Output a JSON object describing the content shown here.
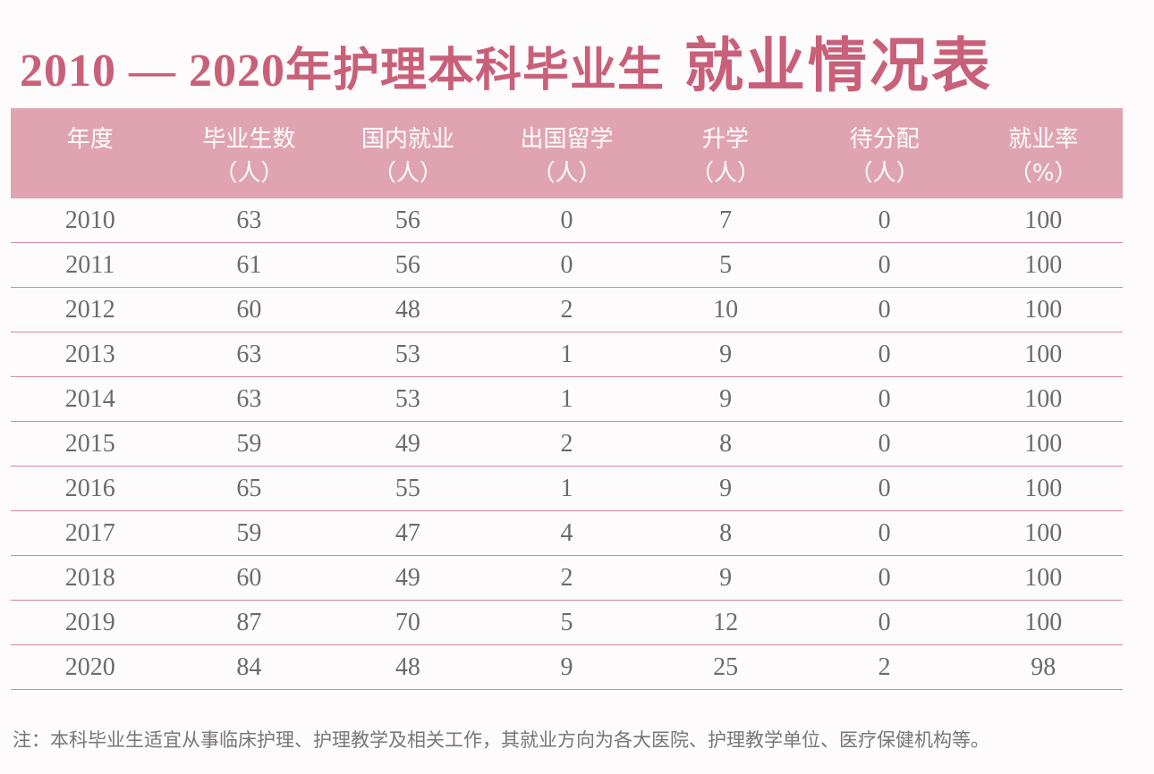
{
  "title": {
    "main": "2010 — 2020年护理本科毕业生",
    "emphasis": "就业情况表"
  },
  "table": {
    "headers": [
      {
        "label": "年度",
        "unit": ""
      },
      {
        "label": "毕业生数",
        "unit": "（人）"
      },
      {
        "label": "国内就业",
        "unit": "（人）"
      },
      {
        "label": "出国留学",
        "unit": "（人）"
      },
      {
        "label": "升学",
        "unit": "（人）"
      },
      {
        "label": "待分配",
        "unit": "（人）"
      },
      {
        "label": "就业率",
        "unit": "（%）"
      }
    ],
    "rows": [
      [
        "2010",
        "63",
        "56",
        "0",
        "7",
        "0",
        "100"
      ],
      [
        "2011",
        "61",
        "56",
        "0",
        "5",
        "0",
        "100"
      ],
      [
        "2012",
        "60",
        "48",
        "2",
        "10",
        "0",
        "100"
      ],
      [
        "2013",
        "63",
        "53",
        "1",
        "9",
        "0",
        "100"
      ],
      [
        "2014",
        "63",
        "53",
        "1",
        "9",
        "0",
        "100"
      ],
      [
        "2015",
        "59",
        "49",
        "2",
        "8",
        "0",
        "100"
      ],
      [
        "2016",
        "65",
        "55",
        "1",
        "9",
        "0",
        "100"
      ],
      [
        "2017",
        "59",
        "47",
        "4",
        "8",
        "0",
        "100"
      ],
      [
        "2018",
        "60",
        "49",
        "2",
        "9",
        "0",
        "100"
      ],
      [
        "2019",
        "87",
        "70",
        "5",
        "12",
        "0",
        "100"
      ],
      [
        "2020",
        "84",
        "48",
        "9",
        "25",
        "2",
        "98"
      ]
    ]
  },
  "note": "注：本科毕业生适宜从事临床护理、护理教学及相关工作，其就业方向为各大医院、护理教学单位、医疗保健机构等。",
  "colors": {
    "accent": "#c9607a",
    "header_bg": "#e0a3b2",
    "row_line": "#d9879b",
    "text": "#6b6b6b"
  }
}
